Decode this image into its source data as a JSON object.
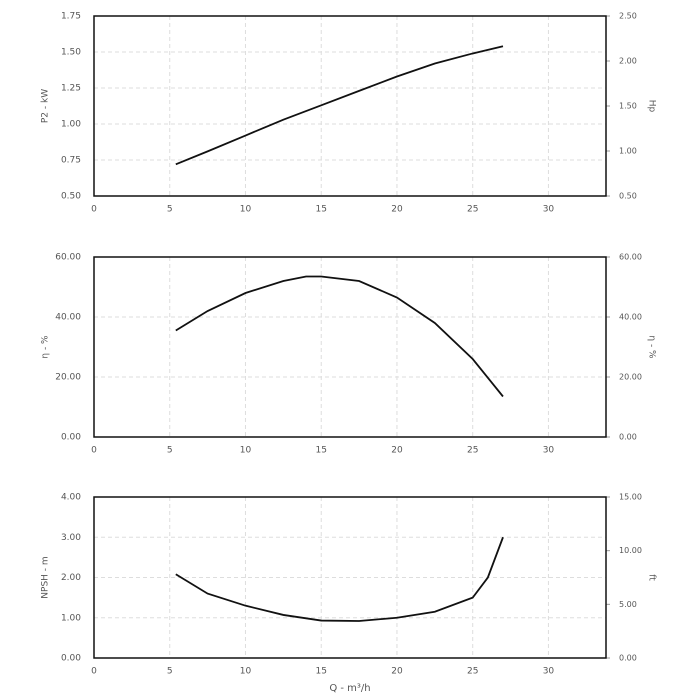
{
  "chart_data": [
    {
      "type": "line",
      "ylabel": "P2 - kW",
      "y2label": "Hp",
      "x": [
        5.4,
        7.5,
        10,
        12.5,
        15,
        17.5,
        20,
        22.5,
        25,
        27
      ],
      "values": [
        0.72,
        0.81,
        0.92,
        1.03,
        1.13,
        1.23,
        1.33,
        1.42,
        1.49,
        1.54
      ],
      "color": "#111111",
      "xlim": [
        0,
        33.8
      ],
      "xticks": [
        0,
        5,
        10,
        15,
        20,
        25,
        30
      ],
      "ylim": [
        0.5,
        1.75
      ],
      "yticks": [
        {
          "value": 0.5,
          "label": "0.50"
        },
        {
          "value": 0.75,
          "label": "0.75"
        },
        {
          "value": 1,
          "label": "1.00"
        },
        {
          "value": 1.25,
          "label": "1.25"
        },
        {
          "value": 1.5,
          "label": "1.50"
        },
        {
          "value": 1.75,
          "label": "1.75"
        }
      ],
      "y2lim": [
        0.5,
        2.5
      ],
      "y2ticks": [
        {
          "value": 0.5,
          "label": "0.50"
        },
        {
          "value": 1,
          "label": "1.00"
        },
        {
          "value": 1.5,
          "label": "1.50"
        },
        {
          "value": 2,
          "label": "2.00"
        },
        {
          "value": 2.5,
          "label": "2.50"
        }
      ],
      "grid": true
    },
    {
      "type": "line",
      "ylabel": "η - %",
      "y2label": "η - %",
      "x": [
        5.4,
        7.5,
        10,
        12.5,
        14,
        15,
        17.5,
        20,
        22.5,
        25,
        27
      ],
      "values": [
        35.5,
        42,
        48,
        52,
        53.5,
        53.5,
        52,
        46.5,
        38,
        26,
        13.5
      ],
      "color": "#111111",
      "xlim": [
        0,
        33.8
      ],
      "xticks": [
        0,
        5,
        10,
        15,
        20,
        25,
        30
      ],
      "ylim": [
        0,
        60
      ],
      "yticks": [
        {
          "value": 0,
          "label": "0.00"
        },
        {
          "value": 20,
          "label": "20.00"
        },
        {
          "value": 40,
          "label": "40.00"
        },
        {
          "value": 60,
          "label": "60.00"
        }
      ],
      "y2lim": [
        0,
        60
      ],
      "y2ticks": [
        {
          "value": 0,
          "label": "0.00"
        },
        {
          "value": 20,
          "label": "20.00"
        },
        {
          "value": 40,
          "label": "40.00"
        },
        {
          "value": 60,
          "label": "60.00"
        }
      ],
      "grid": true
    },
    {
      "type": "line",
      "ylabel": "NPSH - m",
      "y2label": "ft",
      "xlabel": "Q - m³/h",
      "x": [
        5.4,
        7.5,
        10,
        12.5,
        15,
        17.5,
        20,
        22.5,
        25,
        26,
        27
      ],
      "values": [
        2.08,
        1.6,
        1.3,
        1.07,
        0.93,
        0.92,
        1.0,
        1.15,
        1.5,
        2.0,
        3.0
      ],
      "color": "#111111",
      "xlim": [
        0,
        33.8
      ],
      "xticks": [
        0,
        5,
        10,
        15,
        20,
        25,
        30
      ],
      "ylim": [
        0,
        4
      ],
      "yticks": [
        {
          "value": 0,
          "label": "0.00"
        },
        {
          "value": 1,
          "label": "1.00"
        },
        {
          "value": 2,
          "label": "2.00"
        },
        {
          "value": 3,
          "label": "3.00"
        },
        {
          "value": 4,
          "label": "4.00"
        }
      ],
      "y2lim": [
        0,
        15
      ],
      "y2ticks": [
        {
          "value": 0,
          "label": "0.00"
        },
        {
          "value": 5,
          "label": "5.00"
        },
        {
          "value": 10,
          "label": "10.00"
        },
        {
          "value": 15,
          "label": "15.00"
        }
      ],
      "grid": true
    }
  ]
}
